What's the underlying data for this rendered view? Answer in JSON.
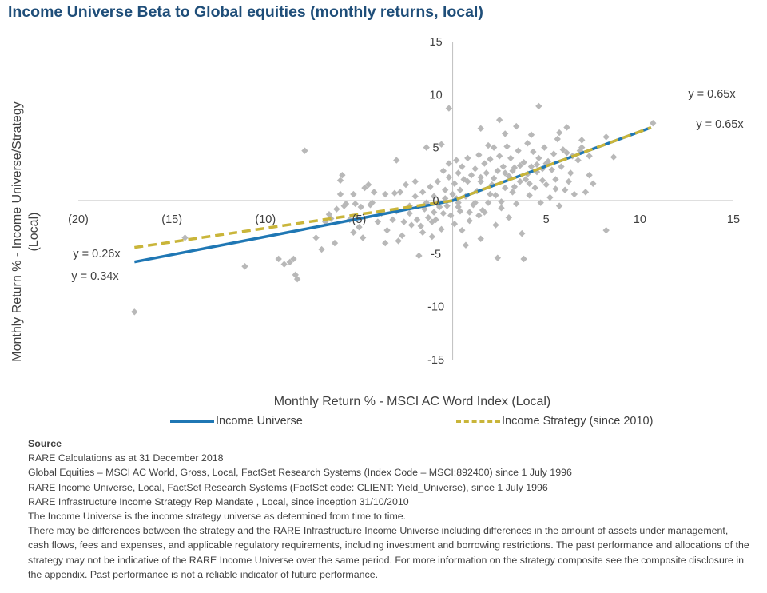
{
  "title": "Income Universe Beta to Global equities (monthly returns, local)",
  "colors": {
    "title": "#1f4e79",
    "scatter": "#b8b8b8",
    "universe": "#1f77b4",
    "strategy": "#c9b53a",
    "axis": "#bfbfbf",
    "text": "#404040"
  },
  "chart_data": {
    "type": "scatter",
    "xlabel": "Monthly Return % - MSCI AC Word Index (Local)",
    "ylabel": "Monthly Return % - Income Universe/Strategy (Local)",
    "xlim": [
      -20,
      15
    ],
    "ylim": [
      -15,
      15
    ],
    "x_ticks": [
      -20,
      -15,
      -10,
      -5,
      5,
      10,
      15
    ],
    "x_tick_labels": [
      "(20)",
      "(15)",
      "(10)",
      "(5)",
      "5",
      "10",
      "15"
    ],
    "y_ticks": [
      -15,
      -10,
      -5,
      5,
      10,
      15
    ],
    "y_tick_labels": [
      "-15",
      "-10",
      "-5",
      "5",
      "10",
      "15"
    ],
    "origin_label": "0",
    "grid": false,
    "legend_position": "bottom",
    "trendlines": [
      {
        "name": "Income Universe",
        "style": "solid",
        "x_range": [
          -17,
          10.6
        ],
        "neg_slope": 0.34,
        "pos_slope": 0.65
      },
      {
        "name": "Income Strategy (since 2010)",
        "style": "dashed",
        "x_range": [
          -17,
          10.6
        ],
        "neg_slope": 0.26,
        "pos_slope": 0.65
      }
    ],
    "annotations": {
      "top_upper": "y = 0.65x",
      "top_lower": "y = 0.65x",
      "left_upper": "y = 0.26x",
      "left_lower": "y = 0.34x"
    },
    "points": [
      [
        -17.0,
        -10.5
      ],
      [
        -14.3,
        -3.5
      ],
      [
        -11.1,
        -6.2
      ],
      [
        -9.3,
        -5.5
      ],
      [
        -9.0,
        -6.0
      ],
      [
        -8.7,
        -5.8
      ],
      [
        -8.4,
        -7.0
      ],
      [
        -8.3,
        -7.4
      ],
      [
        -8.5,
        -5.5
      ],
      [
        -7.9,
        4.7
      ],
      [
        -7.3,
        -3.5
      ],
      [
        -7.0,
        -4.6
      ],
      [
        -6.8,
        -2.0
      ],
      [
        -6.6,
        -1.3
      ],
      [
        -6.5,
        -1.7
      ],
      [
        -6.3,
        -4.0
      ],
      [
        -6.2,
        -0.8
      ],
      [
        -6.0,
        0.6
      ],
      [
        -5.8,
        -0.5
      ],
      [
        -5.9,
        2.4
      ],
      [
        -6.0,
        1.9
      ],
      [
        -5.5,
        -1.8
      ],
      [
        -5.3,
        -3.0
      ],
      [
        -5.2,
        -0.3
      ],
      [
        -5.0,
        -2.5
      ],
      [
        -4.9,
        -0.6
      ],
      [
        -4.8,
        -3.5
      ],
      [
        -4.5,
        1.5
      ],
      [
        -4.4,
        -0.4
      ],
      [
        -4.2,
        0.8
      ],
      [
        -4.0,
        -2.0
      ],
      [
        -3.8,
        -1.2
      ],
      [
        -3.6,
        0.6
      ],
      [
        -3.5,
        -2.8
      ],
      [
        -3.2,
        -1.8
      ],
      [
        -3.1,
        0.7
      ],
      [
        -3.0,
        -1.0
      ],
      [
        -2.9,
        -3.8
      ],
      [
        -2.8,
        0.8
      ],
      [
        -2.6,
        -2.0
      ],
      [
        -2.5,
        1.5
      ],
      [
        -2.3,
        -0.5
      ],
      [
        -2.2,
        -2.3
      ],
      [
        -2.0,
        0.4
      ],
      [
        -1.9,
        -1.8
      ],
      [
        -1.8,
        -5.2
      ],
      [
        -1.7,
        -2.4
      ],
      [
        -1.6,
        0.8
      ],
      [
        -1.5,
        -0.8
      ],
      [
        -1.4,
        -0.2
      ],
      [
        -1.3,
        -1.6
      ],
      [
        -1.2,
        1.3
      ],
      [
        -1.1,
        -2.0
      ],
      [
        -1.1,
        -3.4
      ],
      [
        -1.0,
        0.4
      ],
      [
        -0.9,
        -1.8
      ],
      [
        -0.8,
        1.8
      ],
      [
        -0.7,
        -0.6
      ],
      [
        -0.6,
        -2.7
      ],
      [
        -0.5,
        2.8
      ],
      [
        -0.5,
        -1.2
      ],
      [
        -0.4,
        1.0
      ],
      [
        -0.3,
        -0.5
      ],
      [
        -0.2,
        3.5
      ],
      [
        -0.1,
        -1.4
      ],
      [
        -0.2,
        2.2
      ],
      [
        0.0,
        0.6
      ],
      [
        0.1,
        -2.2
      ],
      [
        0.1,
        1.6
      ],
      [
        0.2,
        0.2
      ],
      [
        0.2,
        3.8
      ],
      [
        0.3,
        2.6
      ],
      [
        0.3,
        -0.6
      ],
      [
        0.4,
        1.0
      ],
      [
        0.5,
        -2.8
      ],
      [
        0.5,
        3.2
      ],
      [
        0.6,
        2.0
      ],
      [
        0.7,
        0.4
      ],
      [
        0.8,
        4.0
      ],
      [
        0.9,
        -1.1
      ],
      [
        1.0,
        2.4
      ],
      [
        1.1,
        -0.4
      ],
      [
        1.2,
        3.0
      ],
      [
        1.3,
        0.9
      ],
      [
        1.4,
        -1.4
      ],
      [
        1.4,
        4.3
      ],
      [
        1.5,
        1.8
      ],
      [
        1.6,
        -0.9
      ],
      [
        1.7,
        3.5
      ],
      [
        1.8,
        2.6
      ],
      [
        1.9,
        -0.2
      ],
      [
        2.0,
        3.9
      ],
      [
        2.1,
        1.5
      ],
      [
        2.2,
        5.0
      ],
      [
        2.3,
        0.5
      ],
      [
        2.3,
        -2.3
      ],
      [
        2.4,
        2.8
      ],
      [
        2.5,
        4.2
      ],
      [
        2.6,
        -0.7
      ],
      [
        2.7,
        3.2
      ],
      [
        2.8,
        1.2
      ],
      [
        2.9,
        5.1
      ],
      [
        3.0,
        2.3
      ],
      [
        3.0,
        -1.6
      ],
      [
        3.1,
        4.0
      ],
      [
        3.2,
        0.8
      ],
      [
        3.3,
        3.1
      ],
      [
        3.4,
        -0.3
      ],
      [
        3.5,
        4.7
      ],
      [
        3.6,
        1.8
      ],
      [
        3.7,
        -3.1
      ],
      [
        3.8,
        3.6
      ],
      [
        3.9,
        2.0
      ],
      [
        4.0,
        5.4
      ],
      [
        4.1,
        0.5
      ],
      [
        4.2,
        3.2
      ],
      [
        4.3,
        4.6
      ],
      [
        4.4,
        1.2
      ],
      [
        4.5,
        2.7
      ],
      [
        4.6,
        4.0
      ],
      [
        4.7,
        -0.2
      ],
      [
        4.8,
        3.0
      ],
      [
        4.9,
        5.0
      ],
      [
        5.0,
        1.5
      ],
      [
        5.1,
        3.7
      ],
      [
        5.2,
        0.3
      ],
      [
        5.4,
        4.4
      ],
      [
        5.5,
        2.0
      ],
      [
        5.6,
        5.8
      ],
      [
        5.7,
        -0.5
      ],
      [
        5.8,
        3.2
      ],
      [
        6.0,
        1.0
      ],
      [
        6.1,
        4.5
      ],
      [
        6.3,
        2.6
      ],
      [
        6.5,
        0.6
      ],
      [
        6.7,
        3.8
      ],
      [
        6.9,
        5.0
      ],
      [
        7.1,
        0.8
      ],
      [
        7.3,
        2.4
      ],
      [
        7.5,
        1.6
      ],
      [
        1.5,
        6.8
      ],
      [
        2.8,
        6.3
      ],
      [
        3.4,
        7.0
      ],
      [
        4.2,
        6.2
      ],
      [
        4.6,
        8.9
      ],
      [
        5.7,
        6.4
      ],
      [
        6.1,
        6.9
      ],
      [
        6.9,
        5.7
      ],
      [
        7.3,
        4.2
      ],
      [
        -0.2,
        8.7
      ],
      [
        -0.6,
        5.3
      ],
      [
        1.9,
        5.2
      ],
      [
        2.5,
        7.6
      ],
      [
        2.4,
        -5.4
      ],
      [
        0.7,
        -4.2
      ],
      [
        1.5,
        -3.6
      ],
      [
        3.8,
        -5.5
      ],
      [
        -1.4,
        5.0
      ],
      [
        -2.3,
        -1.2
      ],
      [
        -2.0,
        1.8
      ],
      [
        1.2,
        -0.2
      ],
      [
        0.4,
        -1.0
      ],
      [
        0.8,
        1.8
      ],
      [
        1.5,
        2.2
      ],
      [
        2.0,
        0.6
      ],
      [
        2.2,
        2.1
      ],
      [
        2.8,
        2.6
      ],
      [
        3.2,
        2.8
      ],
      [
        3.6,
        3.3
      ],
      [
        4.0,
        2.5
      ],
      [
        4.5,
        3.4
      ],
      [
        5.0,
        3.5
      ],
      [
        5.3,
        2.9
      ],
      [
        5.9,
        4.8
      ],
      [
        6.4,
        4.2
      ],
      [
        6.8,
        4.7
      ],
      [
        8.2,
        6.0
      ],
      [
        8.6,
        4.1
      ],
      [
        8.2,
        -2.8
      ],
      [
        10.7,
        7.3
      ],
      [
        -3.0,
        3.8
      ],
      [
        -0.4,
        0.2
      ],
      [
        -0.8,
        -0.3
      ],
      [
        0.3,
        -0.2
      ],
      [
        -1.6,
        -3.0
      ],
      [
        -2.7,
        -3.3
      ],
      [
        -3.6,
        -4.0
      ],
      [
        -4.3,
        -0.2
      ],
      [
        -4.7,
        1.2
      ],
      [
        -5.3,
        0.6
      ],
      [
        -5.7,
        -0.3
      ],
      [
        -1.0,
        -1.1
      ],
      [
        0.9,
        -1.9
      ],
      [
        1.7,
        -1.1
      ],
      [
        2.6,
        -0.1
      ],
      [
        3.3,
        1.3
      ],
      [
        4.1,
        1.6
      ],
      [
        4.8,
        1.9
      ],
      [
        5.5,
        1.1
      ],
      [
        6.2,
        1.8
      ]
    ]
  },
  "legend": {
    "universe_label": "Income Universe",
    "strategy_label": "Income Strategy (since 2010)"
  },
  "source": {
    "heading": "Source",
    "lines": [
      "RARE Calculations as at 31 December 2018",
      "Global Equities – MSCI AC World, Gross, Local, FactSet Research Systems (Index Code – MSCI:892400) since 1 July 1996",
      "RARE Income Universe, Local, FactSet Research Systems (FactSet code: CLIENT: Yield_Universe), since 1 July 1996",
      "RARE Infrastructure Income Strategy Rep Mandate , Local, since inception 31/10/2010",
      "The Income Universe is the income strategy universe as determined from time to time.",
      "There may be differences between the strategy and the RARE Infrastructure Income Universe including differences in the amount of assets under management, cash flows, fees and expenses, and applicable regulatory requirements, including investment and borrowing restrictions. The past performance and allocations of the strategy may not be indicative of the RARE Income Universe over the same period. For more information on the strategy composite see the composite disclosure in the appendix. Past performance is not a reliable indicator of future performance."
    ]
  }
}
